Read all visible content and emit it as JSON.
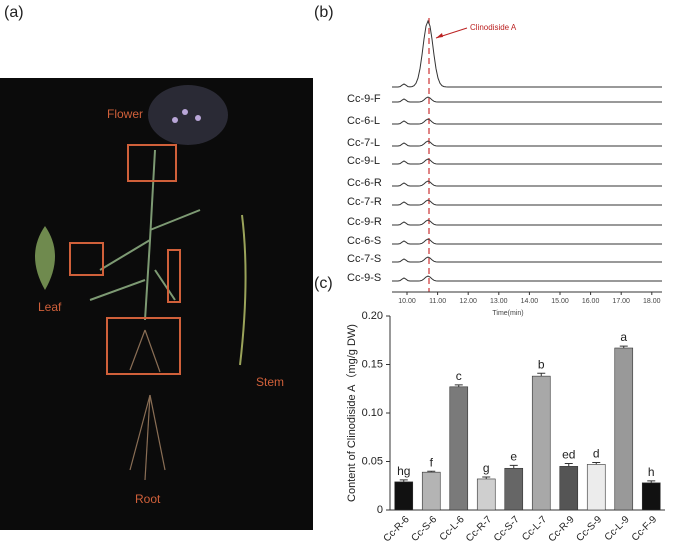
{
  "panels": {
    "a": "(a)",
    "b": "(b)",
    "c": "(c)"
  },
  "photo": {
    "flower": "Flower",
    "leaf": "Leaf",
    "stem": "Stem",
    "root": "Root"
  },
  "chromatogram": {
    "annotation": "Clinodiside A",
    "traces": [
      "Cc-9-F",
      "Cc-6-L",
      "Cc-7-L",
      "Cc-9-L",
      "Cc-6-R",
      "Cc-7-R",
      "Cc-9-R",
      "Cc-6-S",
      "Cc-7-S",
      "Cc-9-S"
    ],
    "ticks": [
      "10.00",
      "11.00",
      "12.00",
      "13.00",
      "14.00",
      "15.00",
      "16.00",
      "17.00",
      "18.00"
    ],
    "x_label": "Time(min)"
  },
  "chart_data": {
    "type": "bar",
    "y_label": "Content of Clinodiside A（mg/g DW)",
    "categories": [
      "Cc-R-6",
      "Cc-S-6",
      "Cc-L-6",
      "Cc-R-7",
      "Cc-S-7",
      "Cc-L-7",
      "Cc-R-9",
      "Cc-S-9",
      "Cc-L-9",
      "Cc-F-9"
    ],
    "values": [
      0.029,
      0.039,
      0.127,
      0.032,
      0.043,
      0.138,
      0.045,
      0.047,
      0.167,
      0.028
    ],
    "errors": [
      0.002,
      0.001,
      0.002,
      0.002,
      0.003,
      0.003,
      0.003,
      0.002,
      0.002,
      0.002
    ],
    "annotations": [
      "hg",
      "f",
      "c",
      "g",
      "e",
      "b",
      "ed",
      "d",
      "a",
      "h"
    ],
    "colors": [
      "#111111",
      "#b4b4b4",
      "#7a7a7a",
      "#cfcfcf",
      "#666666",
      "#a8a8a8",
      "#555555",
      "#ececec",
      "#999999",
      "#111111"
    ],
    "ylim": [
      0,
      0.2
    ],
    "yticks": [
      0,
      0.05,
      {
        "value": 0.1,
        "label": "0.10"
      },
      0.15,
      {
        "value": 0.2,
        "label": "0.20"
      }
    ]
  }
}
